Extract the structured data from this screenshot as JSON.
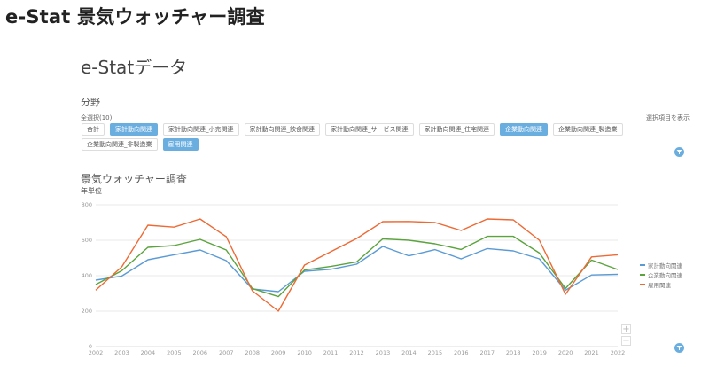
{
  "header": {
    "title": "e-Stat 景気ウォッチャー調査"
  },
  "section": {
    "title": "e-Statデータ"
  },
  "filter": {
    "label": "分野",
    "select_all": "全選択(10)",
    "show_selected": "選択項目を表示",
    "chips": [
      {
        "label": "合計",
        "active": false
      },
      {
        "label": "家計動向関連",
        "active": true
      },
      {
        "label": "家計動向関連_小売関連",
        "active": false
      },
      {
        "label": "家計動向関連_飲食関連",
        "active": false
      },
      {
        "label": "家計動向関連_サービス関連",
        "active": false
      },
      {
        "label": "家計動向関連_住宅関連",
        "active": false
      },
      {
        "label": "企業動向関連",
        "active": true
      },
      {
        "label": "企業動向関連_製造業",
        "active": false
      },
      {
        "label": "企業動向関連_非製造業",
        "active": false
      },
      {
        "label": "雇用関連",
        "active": true
      }
    ]
  },
  "chart": {
    "title": "景気ウォッチャー調査",
    "subtitle": "年単位",
    "zoom_in": "+",
    "zoom_out": "−"
  },
  "chart_data": {
    "type": "line",
    "title": "景気ウォッチャー調査",
    "subtitle": "年単位",
    "xlabel": "",
    "ylabel": "",
    "ylim": [
      0,
      800
    ],
    "yticks": [
      0,
      200,
      400,
      600,
      800
    ],
    "grid": true,
    "legend_position": "right",
    "x": [
      "2002",
      "2003",
      "2004",
      "2005",
      "2006",
      "2007",
      "2008",
      "2009",
      "2010",
      "2011",
      "2012",
      "2013",
      "2014",
      "2015",
      "2016",
      "2017",
      "2018",
      "2019",
      "2020",
      "2021",
      "2022"
    ],
    "series": [
      {
        "name": "家計動向関連",
        "color": "#5b9bd5",
        "values": [
          375,
          398,
          490,
          518,
          545,
          485,
          325,
          310,
          425,
          436,
          465,
          565,
          512,
          547,
          495,
          553,
          540,
          495,
          318,
          404,
          408
        ]
      },
      {
        "name": "企業動向関連",
        "color": "#5aa33d",
        "values": [
          350,
          428,
          560,
          570,
          605,
          545,
          328,
          282,
          432,
          452,
          478,
          608,
          600,
          580,
          548,
          622,
          622,
          528,
          328,
          488,
          435
        ]
      },
      {
        "name": "雇用関連",
        "color": "#ed6a35",
        "values": [
          318,
          450,
          685,
          674,
          720,
          620,
          315,
          200,
          460,
          535,
          610,
          705,
          706,
          700,
          655,
          720,
          715,
          600,
          295,
          506,
          518
        ]
      }
    ]
  }
}
